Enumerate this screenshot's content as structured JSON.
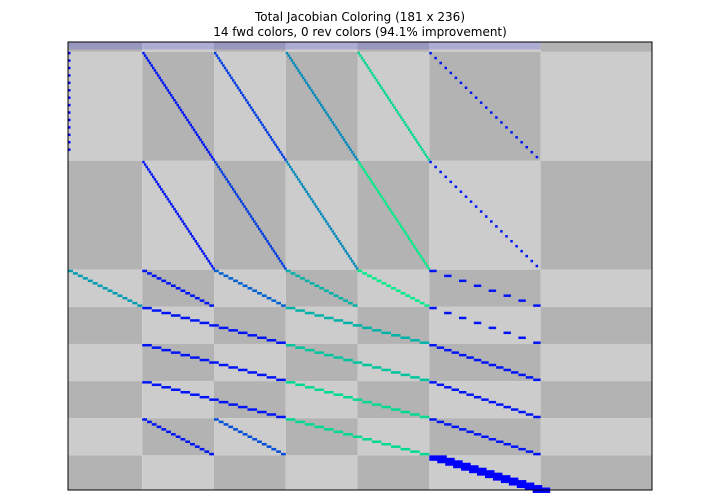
{
  "chart_data": {
    "type": "heatmap",
    "title": "Total Jacobian Coloring (181 x 236)",
    "subtitle": "14 fwd colors, 0 rev colors (94.1% improvement)",
    "xlabel": "",
    "ylabel": "",
    "n_rows": 181,
    "n_cols": 236,
    "fwd_colors": 14,
    "rev_colors": 0,
    "improvement_percent": 94.1,
    "axis_ticks": "none",
    "column_blocks": [
      0,
      30,
      59,
      88,
      117,
      146,
      191,
      236
    ],
    "row_blocks": [
      0,
      4,
      48,
      92,
      107,
      122,
      137,
      152,
      167,
      181
    ],
    "block_shade_colors": [
      "#b3b3b3",
      "#cccccc"
    ],
    "colormap": "winter",
    "nonzero_patterns": [
      {
        "kind": "segment",
        "row_start": 0,
        "row_end": 3,
        "col_start": 0,
        "col_end": 191,
        "color_index": 0
      },
      {
        "kind": "sparse_column",
        "col": 0,
        "row_start": 4,
        "row_end": 45,
        "color_index": 0
      },
      {
        "kind": "diagonal",
        "row_start": 4,
        "row_end": 47,
        "col_start": 30,
        "col_end": 59,
        "color_index": 1
      },
      {
        "kind": "diagonal",
        "row_start": 4,
        "row_end": 47,
        "col_start": 59,
        "col_end": 88,
        "color_index": 3
      },
      {
        "kind": "diagonal",
        "row_start": 4,
        "row_end": 47,
        "col_start": 88,
        "col_end": 117,
        "color_index": 7
      },
      {
        "kind": "diagonal",
        "row_start": 4,
        "row_end": 47,
        "col_start": 117,
        "col_end": 146,
        "color_index": 11
      },
      {
        "kind": "diagonal_sparse",
        "row_start": 4,
        "row_end": 47,
        "col_start": 146,
        "col_end": 191,
        "color_index": 1
      },
      {
        "kind": "diagonal",
        "row_start": 48,
        "row_end": 91,
        "col_start": 30,
        "col_end": 59,
        "color_index": 1
      },
      {
        "kind": "diagonal",
        "row_start": 48,
        "row_end": 91,
        "col_start": 59,
        "col_end": 88,
        "color_index": 3
      },
      {
        "kind": "diagonal",
        "row_start": 48,
        "row_end": 91,
        "col_start": 88,
        "col_end": 117,
        "color_index": 7
      },
      {
        "kind": "diagonal",
        "row_start": 48,
        "row_end": 91,
        "col_start": 117,
        "col_end": 146,
        "color_index": 12
      },
      {
        "kind": "diagonal_sparse",
        "row_start": 48,
        "row_end": 91,
        "col_start": 146,
        "col_end": 191,
        "color_index": 1
      },
      {
        "kind": "diagonal",
        "row_start": 92,
        "row_end": 106,
        "col_start": 0,
        "col_end": 30,
        "color_index": 8
      },
      {
        "kind": "diagonal",
        "row_start": 92,
        "row_end": 106,
        "col_start": 30,
        "col_end": 59,
        "color_index": 1
      },
      {
        "kind": "diagonal",
        "row_start": 92,
        "row_end": 106,
        "col_start": 59,
        "col_end": 88,
        "color_index": 5
      },
      {
        "kind": "diagonal",
        "row_start": 92,
        "row_end": 106,
        "col_start": 88,
        "col_end": 117,
        "color_index": 9
      },
      {
        "kind": "diagonal",
        "row_start": 92,
        "row_end": 106,
        "col_start": 117,
        "col_end": 146,
        "color_index": 12
      },
      {
        "kind": "diagonal_sparse",
        "row_start": 92,
        "row_end": 106,
        "col_start": 146,
        "col_end": 191,
        "color_index": 1
      },
      {
        "kind": "diagonal",
        "row_start": 107,
        "row_end": 121,
        "col_start": 30,
        "col_end": 88,
        "color_index": 1
      },
      {
        "kind": "diagonal",
        "row_start": 107,
        "row_end": 121,
        "col_start": 88,
        "col_end": 146,
        "color_index": 9
      },
      {
        "kind": "diagonal_sparse",
        "row_start": 107,
        "row_end": 121,
        "col_start": 146,
        "col_end": 191,
        "color_index": 1
      },
      {
        "kind": "diagonal",
        "row_start": 122,
        "row_end": 136,
        "col_start": 30,
        "col_end": 88,
        "color_index": 1
      },
      {
        "kind": "diagonal",
        "row_start": 122,
        "row_end": 136,
        "col_start": 88,
        "col_end": 146,
        "color_index": 10
      },
      {
        "kind": "diagonal",
        "row_start": 122,
        "row_end": 136,
        "col_start": 146,
        "col_end": 191,
        "color_index": 1
      },
      {
        "kind": "diagonal",
        "row_start": 137,
        "row_end": 151,
        "col_start": 30,
        "col_end": 88,
        "color_index": 1
      },
      {
        "kind": "diagonal",
        "row_start": 137,
        "row_end": 151,
        "col_start": 88,
        "col_end": 146,
        "color_index": 11
      },
      {
        "kind": "diagonal",
        "row_start": 137,
        "row_end": 151,
        "col_start": 146,
        "col_end": 191,
        "color_index": 1
      },
      {
        "kind": "diagonal",
        "row_start": 152,
        "row_end": 166,
        "col_start": 30,
        "col_end": 59,
        "color_index": 1
      },
      {
        "kind": "diagonal",
        "row_start": 152,
        "row_end": 166,
        "col_start": 59,
        "col_end": 88,
        "color_index": 4
      },
      {
        "kind": "diagonal",
        "row_start": 152,
        "row_end": 166,
        "col_start": 88,
        "col_end": 146,
        "color_index": 11
      },
      {
        "kind": "diagonal",
        "row_start": 152,
        "row_end": 166,
        "col_start": 146,
        "col_end": 191,
        "color_index": 1
      },
      {
        "kind": "diagonal_thick",
        "row_start": 167,
        "row_end": 180,
        "col_start": 146,
        "col_end": 191,
        "color_index": 0
      }
    ]
  }
}
